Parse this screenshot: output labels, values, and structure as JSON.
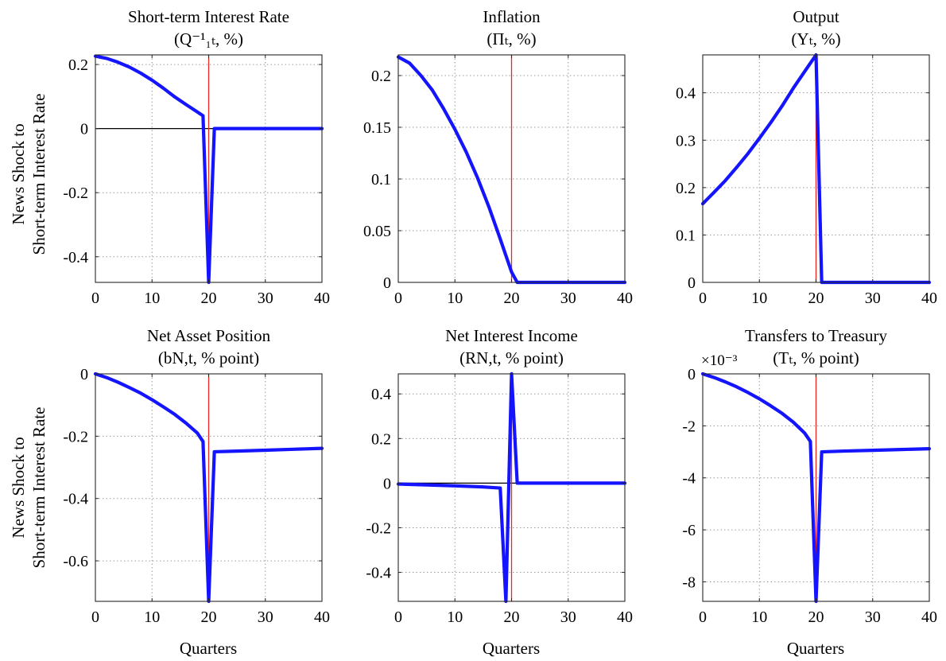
{
  "figure": {
    "row_ylabel_line1": "News Shock to",
    "row_ylabel_line2": "Short-term Interest Rate",
    "xlabel": "Quarters",
    "vline_color": "#e8281e",
    "series_color": "#1414ff",
    "zero_line_color": "#000000"
  },
  "chart_data": [
    {
      "type": "line",
      "title": "Short-term Interest Rate",
      "subtitle": "(Q⁻¹₁ₜ, %)",
      "xlim": [
        0,
        40
      ],
      "ylim": [
        -0.48,
        0.23
      ],
      "xticks": [
        0,
        10,
        20,
        30,
        40
      ],
      "yticks": [
        -0.4,
        -0.2,
        0,
        0.2
      ],
      "ytick_labels": [
        "-0.4",
        "-0.2",
        "0",
        "0.2"
      ],
      "grid": true,
      "vline_x": 20,
      "zero_line": true,
      "x": [
        0,
        2,
        4,
        6,
        8,
        10,
        12,
        14,
        16,
        18,
        19,
        20,
        21,
        25,
        30,
        35,
        40
      ],
      "y": [
        0.226,
        0.219,
        0.207,
        0.192,
        0.173,
        0.151,
        0.126,
        0.099,
        0.075,
        0.052,
        0.04,
        -0.48,
        0.0,
        0.0,
        0.0,
        0.0,
        0.0
      ]
    },
    {
      "type": "line",
      "title": "Inflation",
      "subtitle": "(Πₜ, %)",
      "xlim": [
        0,
        40
      ],
      "ylim": [
        0,
        0.22
      ],
      "xticks": [
        0,
        10,
        20,
        30,
        40
      ],
      "yticks": [
        0,
        0.05,
        0.1,
        0.15,
        0.2
      ],
      "ytick_labels": [
        "0",
        "0.05",
        "0.1",
        "0.15",
        "0.2"
      ],
      "grid": true,
      "vline_x": 20,
      "zero_line": false,
      "x": [
        0,
        2,
        4,
        6,
        8,
        10,
        12,
        14,
        16,
        18,
        20,
        21,
        25,
        30,
        35,
        40
      ],
      "y": [
        0.218,
        0.212,
        0.2,
        0.186,
        0.168,
        0.148,
        0.126,
        0.101,
        0.073,
        0.042,
        0.01,
        0.0,
        0.0,
        0.0,
        0.0,
        0.0
      ]
    },
    {
      "type": "line",
      "title": "Output",
      "subtitle": "(Yₜ, %)",
      "xlim": [
        0,
        40
      ],
      "ylim": [
        0,
        0.48
      ],
      "xticks": [
        0,
        10,
        20,
        30,
        40
      ],
      "yticks": [
        0,
        0.1,
        0.2,
        0.3,
        0.4
      ],
      "ytick_labels": [
        "0",
        "0.1",
        "0.2",
        "0.3",
        "0.4"
      ],
      "grid": true,
      "vline_x": 20,
      "zero_line": false,
      "x": [
        0,
        2,
        4,
        6,
        8,
        10,
        12,
        14,
        16,
        18,
        20,
        21,
        25,
        30,
        35,
        40
      ],
      "y": [
        0.166,
        0.19,
        0.215,
        0.243,
        0.272,
        0.304,
        0.337,
        0.372,
        0.41,
        0.445,
        0.48,
        0.0,
        0.0,
        0.0,
        0.0,
        0.0
      ]
    },
    {
      "type": "line",
      "title": "Net Asset Position",
      "subtitle": "(bN,t, % point)",
      "xlim": [
        0,
        40
      ],
      "ylim": [
        -0.73,
        0.0
      ],
      "xticks": [
        0,
        10,
        20,
        30,
        40
      ],
      "yticks": [
        -0.6,
        -0.4,
        -0.2,
        0
      ],
      "ytick_labels": [
        "-0.6",
        "-0.4",
        "-0.2",
        "0"
      ],
      "grid": true,
      "vline_x": 20,
      "zero_line": false,
      "x": [
        0,
        2,
        4,
        6,
        8,
        10,
        12,
        14,
        16,
        18,
        19,
        20,
        21,
        25,
        30,
        35,
        40
      ],
      "y": [
        0.0,
        -0.012,
        -0.027,
        -0.044,
        -0.062,
        -0.083,
        -0.106,
        -0.13,
        -0.158,
        -0.19,
        -0.217,
        -0.73,
        -0.25,
        -0.248,
        -0.245,
        -0.242,
        -0.239
      ]
    },
    {
      "type": "line",
      "title": "Net Interest Income",
      "subtitle": "(RN,t, % point)",
      "xlim": [
        0,
        40
      ],
      "ylim": [
        -0.53,
        0.49
      ],
      "xticks": [
        0,
        10,
        20,
        30,
        40
      ],
      "yticks": [
        -0.4,
        -0.2,
        0,
        0.2,
        0.4
      ],
      "ytick_labels": [
        "-0.4",
        "-0.2",
        "0",
        "0.2",
        "0.4"
      ],
      "grid": true,
      "vline_x": 20,
      "zero_line": true,
      "x": [
        0,
        5,
        10,
        15,
        18,
        19,
        20,
        21,
        25,
        30,
        35,
        40
      ],
      "y": [
        -0.004,
        -0.008,
        -0.012,
        -0.017,
        -0.022,
        -0.53,
        0.49,
        0.0,
        0.0,
        0.0,
        0.0,
        0.0
      ]
    },
    {
      "type": "line",
      "title": "Transfers to Treasury",
      "subtitle": "(Tₜ, % point)",
      "scale_label": "×10⁻³",
      "xlim": [
        0,
        40
      ],
      "ylim": [
        -8.75,
        0.0
      ],
      "xticks": [
        0,
        10,
        20,
        30,
        40
      ],
      "yticks": [
        -8,
        -6,
        -4,
        -2,
        0
      ],
      "ytick_labels": [
        "-8",
        "-6",
        "-4",
        "-2",
        "0"
      ],
      "grid": true,
      "vline_x": 20,
      "zero_line": false,
      "x": [
        0,
        2,
        4,
        6,
        8,
        10,
        12,
        14,
        16,
        18,
        19,
        20,
        21,
        25,
        30,
        35,
        40
      ],
      "y": [
        0.0,
        -0.14,
        -0.31,
        -0.5,
        -0.72,
        -0.96,
        -1.23,
        -1.52,
        -1.86,
        -2.28,
        -2.6,
        -8.75,
        -3.0,
        -2.97,
        -2.94,
        -2.91,
        -2.88
      ]
    }
  ]
}
